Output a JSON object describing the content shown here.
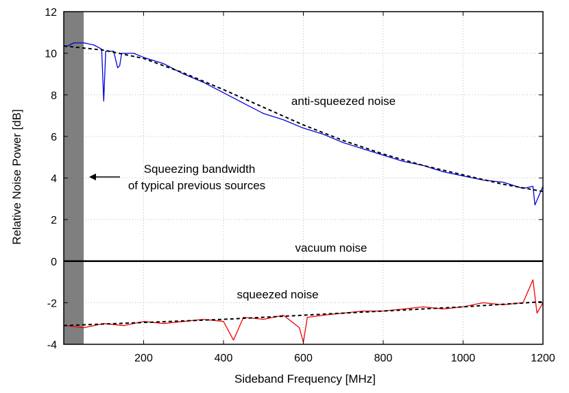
{
  "chart_data": {
    "type": "line",
    "title": "",
    "xlabel": "Sideband Frequency [MHz]",
    "ylabel": "Relative Noise Power [dB]",
    "xlim": [
      0,
      1200
    ],
    "ylim": [
      -4,
      12
    ],
    "xticks": [
      200,
      400,
      600,
      800,
      1000,
      1200
    ],
    "yticks": [
      -4,
      -2,
      0,
      2,
      4,
      6,
      8,
      10,
      12
    ],
    "grid": true,
    "shaded_band": {
      "x_from": 0,
      "x_to": 50,
      "color": "#7f7f7f"
    },
    "series": [
      {
        "name": "anti-squeezed noise",
        "color": "#0000dd",
        "x": [
          5,
          25,
          50,
          75,
          95,
          100,
          105,
          125,
          135,
          140,
          145,
          175,
          200,
          250,
          300,
          350,
          400,
          450,
          500,
          550,
          600,
          650,
          700,
          750,
          800,
          850,
          900,
          950,
          1000,
          1050,
          1100,
          1150,
          1175,
          1180,
          1200
        ],
        "y": [
          10.3,
          10.5,
          10.5,
          10.4,
          10.2,
          7.7,
          10.1,
          10.1,
          9.3,
          9.4,
          10.0,
          10.0,
          9.8,
          9.5,
          9.0,
          8.6,
          8.1,
          7.6,
          7.1,
          6.8,
          6.4,
          6.1,
          5.7,
          5.4,
          5.1,
          4.8,
          4.6,
          4.3,
          4.1,
          3.9,
          3.8,
          3.5,
          3.6,
          2.7,
          3.6
        ]
      },
      {
        "name": "anti-squeezed noise fit",
        "color": "#000000",
        "dashed": true,
        "x": [
          0,
          100,
          200,
          300,
          400,
          500,
          600,
          700,
          800,
          900,
          1000,
          1100,
          1200
        ],
        "y": [
          10.35,
          10.15,
          9.75,
          9.05,
          8.25,
          7.4,
          6.55,
          5.8,
          5.15,
          4.6,
          4.15,
          3.7,
          3.35
        ]
      },
      {
        "name": "vacuum noise",
        "color": "#000000",
        "x": [
          0,
          1200
        ],
        "y": [
          0,
          0
        ]
      },
      {
        "name": "squeezed noise",
        "color": "#ee0000",
        "x": [
          5,
          50,
          100,
          150,
          200,
          250,
          300,
          350,
          400,
          425,
          450,
          500,
          550,
          590,
          600,
          610,
          650,
          700,
          750,
          800,
          850,
          900,
          950,
          1000,
          1050,
          1100,
          1150,
          1175,
          1185,
          1200
        ],
        "y": [
          -3.1,
          -3.2,
          -3.0,
          -3.1,
          -2.9,
          -3.0,
          -2.9,
          -2.8,
          -2.9,
          -3.8,
          -2.7,
          -2.8,
          -2.6,
          -3.2,
          -3.9,
          -2.7,
          -2.6,
          -2.5,
          -2.4,
          -2.4,
          -2.3,
          -2.2,
          -2.3,
          -2.2,
          -2.0,
          -2.1,
          -2.0,
          -0.9,
          -2.5,
          -2.0
        ]
      },
      {
        "name": "squeezed noise fit",
        "color": "#000000",
        "dashed": true,
        "x": [
          0,
          200,
          400,
          600,
          800,
          1000,
          1200
        ],
        "y": [
          -3.1,
          -2.95,
          -2.8,
          -2.6,
          -2.4,
          -2.2,
          -1.95
        ]
      }
    ],
    "annotations": {
      "anti_squeezed": "anti-squeezed noise",
      "vacuum": "vacuum noise",
      "squeezed": "squeezed noise",
      "bandwidth_line1": "Squeezing bandwidth",
      "bandwidth_line2": "of typical previous sources"
    }
  }
}
